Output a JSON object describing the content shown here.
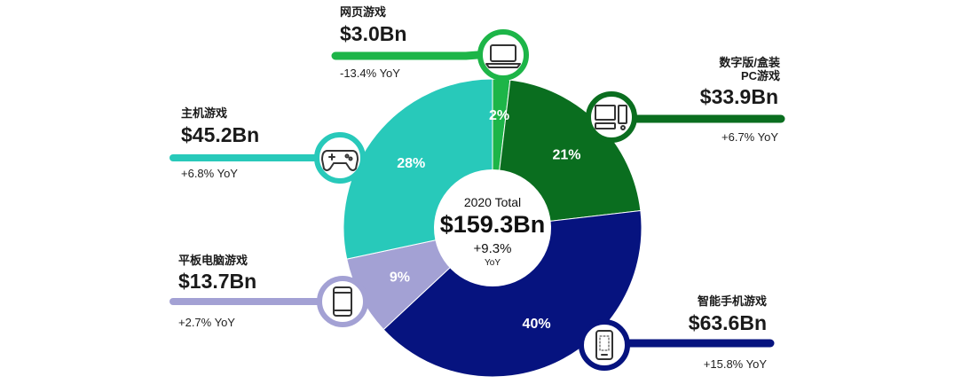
{
  "chart_data": {
    "type": "pie",
    "center": {
      "title": "2020 Total",
      "total": "$159.3Bn",
      "growth": "+9.3%",
      "growth_unit": "YoY"
    },
    "segments": [
      {
        "name": "网页游戏",
        "name_lines": [
          "网页游戏"
        ],
        "value": 3.0,
        "value_label": "$3.0Bn",
        "share_label": "2%",
        "yoy": "-13.4% YoY",
        "icon": "laptop-icon",
        "color": "#1db548",
        "label_color": "#ffffff"
      },
      {
        "name": "数字版/盒装PC游戏",
        "name_lines": [
          "数字版/盒装",
          "PC游戏"
        ],
        "value": 33.9,
        "value_label": "$33.9Bn",
        "share_label": "21%",
        "yoy": "+6.7% YoY",
        "icon": "desktop-pc-icon",
        "color": "#0a6e1f",
        "label_color": "#ffffff"
      },
      {
        "name": "智能手机游戏",
        "name_lines": [
          "智能手机游戏"
        ],
        "value": 63.6,
        "value_label": "$63.6Bn",
        "share_label": "40%",
        "yoy": "+15.8% YoY",
        "icon": "smartphone-icon",
        "color": "#06137f",
        "label_color": "#ffffff"
      },
      {
        "name": "平板电脑游戏",
        "name_lines": [
          "平板电脑游戏"
        ],
        "value": 13.7,
        "value_label": "$13.7Bn",
        "share_label": "9%",
        "yoy": "+2.7% YoY",
        "icon": "tablet-icon",
        "color": "#a3a1d4",
        "label_color": "#ffffff"
      },
      {
        "name": "主机游戏",
        "name_lines": [
          "主机游戏"
        ],
        "value": 45.2,
        "value_label": "$45.2Bn",
        "share_label": "28%",
        "yoy": "+6.8% YoY",
        "icon": "gamepad-icon",
        "color": "#28c9ba",
        "label_color": "#ffffff"
      }
    ]
  }
}
